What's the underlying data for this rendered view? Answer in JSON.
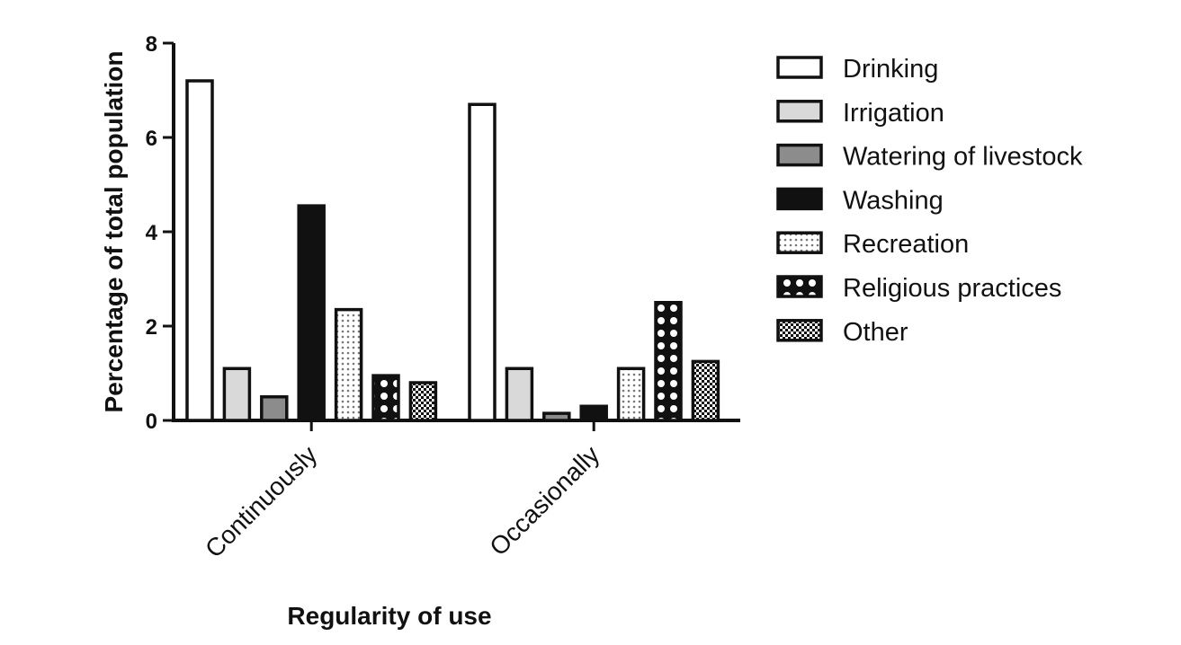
{
  "chart_data": {
    "type": "bar",
    "xlabel": "Regularity of use",
    "ylabel": "Percentage of total population",
    "ylim": [
      0,
      8
    ],
    "yticks": [
      0,
      2,
      4,
      6,
      8
    ],
    "grid": false,
    "legend_position": "right",
    "categories": [
      "Continuously",
      "Occasionally"
    ],
    "series": [
      {
        "name": "Drinking",
        "values": [
          7.2,
          6.7
        ],
        "fill": "#ffffff",
        "pattern": "none"
      },
      {
        "name": "Irrigation",
        "values": [
          1.1,
          1.1
        ],
        "fill": "#d9d9d9",
        "pattern": "none"
      },
      {
        "name": "Watering of livestock",
        "values": [
          0.5,
          0.15
        ],
        "fill": "#8c8c8c",
        "pattern": "none"
      },
      {
        "name": "Washing",
        "values": [
          4.55,
          0.3
        ],
        "fill": "#111111",
        "pattern": "none"
      },
      {
        "name": "Recreation",
        "values": [
          2.35,
          1.1
        ],
        "fill": "#ffffff",
        "pattern": "dots"
      },
      {
        "name": "Religious practices",
        "values": [
          0.95,
          2.5
        ],
        "fill": "#111111",
        "pattern": "checker"
      },
      {
        "name": "Other",
        "values": [
          0.8,
          1.25
        ],
        "fill": "#111111",
        "pattern": "fine-check"
      }
    ]
  }
}
